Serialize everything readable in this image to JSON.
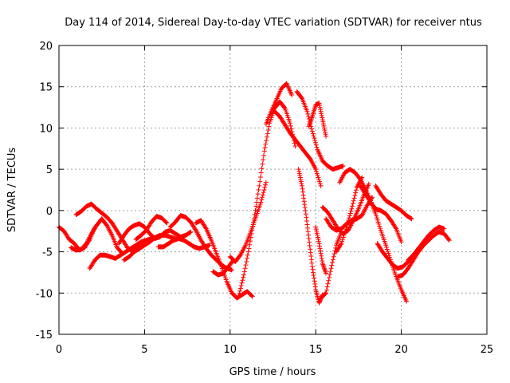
{
  "chart_data": {
    "type": "scatter",
    "title": "Day 114 of 2014, Sidereal Day-to-day VTEC variation (SDTVAR) for receiver ntus",
    "xlabel": "GPS time / hours",
    "ylabel": "SDTVAR / TECUs",
    "xlim": [
      0,
      25
    ],
    "ylim": [
      -15,
      20
    ],
    "xticks": [
      0,
      5,
      10,
      15,
      20,
      25
    ],
    "yticks": [
      -15,
      -10,
      -5,
      0,
      5,
      10,
      15,
      20
    ],
    "grid": true,
    "marker": "plus",
    "marker_color": "#ff0000",
    "series_traces": [
      {
        "name": "trace-1",
        "x": [
          0.0,
          0.3,
          0.6,
          0.9,
          1.2,
          1.5,
          1.8,
          2.1
        ],
        "y": [
          -2.0,
          -2.5,
          -3.5,
          -4.0,
          -4.8,
          -4.5,
          -3.5,
          -2.0
        ]
      },
      {
        "name": "trace-2",
        "x": [
          1.0,
          1.3,
          1.6,
          1.9,
          2.2,
          2.5,
          2.8,
          3.1,
          3.4,
          3.7,
          4.0,
          4.3,
          4.6,
          4.9
        ],
        "y": [
          -0.5,
          -0.1,
          0.5,
          0.8,
          0.2,
          -0.3,
          -0.8,
          -1.5,
          -2.5,
          -3.5,
          -4.5,
          -5.0,
          -4.5,
          -3.8
        ]
      },
      {
        "name": "trace-3",
        "x": [
          0.7,
          1.0,
          1.3,
          1.6,
          1.9,
          2.2,
          2.5,
          2.8,
          3.1,
          3.4,
          3.7
        ],
        "y": [
          -4.5,
          -4.8,
          -4.7,
          -4.0,
          -2.8,
          -1.8,
          -1.0,
          -1.8,
          -3.0,
          -4.5,
          -5.2
        ]
      },
      {
        "name": "trace-4",
        "x": [
          1.8,
          2.1,
          2.4,
          2.7,
          3.0,
          3.3,
          3.6,
          3.9,
          4.2,
          4.5,
          4.8,
          5.1,
          5.4,
          5.7,
          6.0
        ],
        "y": [
          -7.0,
          -6.0,
          -5.4,
          -5.4,
          -5.6,
          -5.8,
          -5.4,
          -5.0,
          -4.6,
          -4.2,
          -3.8,
          -3.6,
          -3.4,
          -3.2,
          -3.0
        ]
      },
      {
        "name": "trace-5",
        "x": [
          3.5,
          3.8,
          4.1,
          4.4,
          4.7,
          5.0,
          5.3,
          5.6,
          5.9,
          6.2,
          6.5,
          6.8,
          7.1,
          7.4,
          7.7
        ],
        "y": [
          -4.0,
          -3.0,
          -2.2,
          -1.8,
          -1.6,
          -2.0,
          -2.8,
          -3.4,
          -3.2,
          -2.6,
          -2.4,
          -2.8,
          -3.2,
          -3.0,
          -2.6
        ]
      },
      {
        "name": "trace-6",
        "x": [
          3.8,
          4.1,
          4.4,
          4.7,
          5.0,
          5.3,
          5.6,
          5.9,
          6.2,
          6.5,
          6.8
        ],
        "y": [
          -6.0,
          -5.6,
          -5.0,
          -4.6,
          -4.2,
          -3.8,
          -3.3,
          -3.0,
          -3.0,
          -3.2,
          -3.4
        ]
      },
      {
        "name": "trace-7",
        "x": [
          4.5,
          4.8,
          5.1,
          5.4,
          5.7,
          6.0,
          6.3
        ],
        "y": [
          -3.5,
          -3.0,
          -2.4,
          -1.4,
          -0.7,
          -0.9,
          -1.5
        ]
      },
      {
        "name": "trace-8",
        "x": [
          5.8,
          6.1,
          6.4,
          6.7,
          7.0,
          7.3,
          7.6,
          7.9,
          8.2,
          8.5,
          8.8
        ],
        "y": [
          -4.4,
          -4.4,
          -4.0,
          -3.6,
          -3.4,
          -3.6,
          -4.0,
          -4.4,
          -4.6,
          -4.4,
          -4.2
        ]
      },
      {
        "name": "trace-9",
        "x": [
          6.5,
          6.8,
          7.1,
          7.4,
          7.7,
          8.0,
          8.3,
          8.6,
          8.9,
          9.2,
          9.5,
          9.8,
          10.1
        ],
        "y": [
          -2.0,
          -1.4,
          -0.6,
          -0.8,
          -1.4,
          -2.4,
          -3.6,
          -4.6,
          -5.4,
          -6.0,
          -6.6,
          -7.0,
          -7.2
        ]
      },
      {
        "name": "trace-10",
        "x": [
          8.0,
          8.3,
          8.6,
          8.9,
          9.2,
          9.5,
          9.8,
          10.1,
          10.4,
          10.7,
          11.0,
          11.3
        ],
        "y": [
          -1.5,
          -1.2,
          -2.2,
          -3.6,
          -5.2,
          -6.8,
          -8.6,
          -10.0,
          -10.6,
          -10.2,
          -9.8,
          -10.4
        ]
      },
      {
        "name": "trace-11",
        "x": [
          9.0,
          9.3,
          9.6,
          9.9,
          10.2
        ],
        "y": [
          -7.4,
          -7.8,
          -7.6,
          -6.8,
          -6.0
        ]
      },
      {
        "name": "trace-12",
        "x": [
          10.5,
          10.8,
          11.1,
          11.4,
          11.7,
          12.0,
          12.3,
          12.6,
          12.9,
          13.2,
          13.5,
          13.8
        ],
        "y": [
          -10.4,
          -7.8,
          -4.6,
          -1.0,
          3.0,
          7.2,
          10.6,
          12.4,
          13.2,
          12.4,
          10.6,
          7.8
        ]
      },
      {
        "name": "trace-13",
        "x": [
          10.0,
          10.3,
          10.6,
          10.9,
          11.2,
          11.5,
          11.8,
          12.1
        ],
        "y": [
          -5.6,
          -6.2,
          -5.4,
          -4.2,
          -2.6,
          -0.8,
          1.0,
          3.4
        ]
      },
      {
        "name": "trace-14",
        "x": [
          12.1,
          12.4,
          12.7,
          13.0,
          13.3,
          13.6
        ],
        "y": [
          10.5,
          12.0,
          13.4,
          14.8,
          15.4,
          14.0
        ]
      },
      {
        "name": "trace-15",
        "x": [
          12.6,
          12.9,
          13.2,
          13.5,
          13.8,
          14.1,
          14.4,
          14.7,
          15.0,
          15.3
        ],
        "y": [
          12.0,
          11.4,
          10.4,
          9.4,
          8.6,
          7.8,
          7.0,
          6.2,
          5.0,
          3.0
        ]
      },
      {
        "name": "trace-16",
        "x": [
          13.9,
          14.2,
          14.5,
          14.8,
          15.1,
          15.4,
          15.7,
          16.0,
          16.3,
          16.6
        ],
        "y": [
          14.4,
          13.6,
          12.0,
          9.6,
          7.4,
          6.0,
          5.4,
          5.0,
          5.2,
          5.4
        ]
      },
      {
        "name": "trace-17",
        "x": [
          14.0,
          14.2,
          14.4,
          14.6,
          14.8,
          15.0,
          15.2,
          15.4
        ],
        "y": [
          5.0,
          3.0,
          0.0,
          -3.4,
          -6.8,
          -9.6,
          -11.2,
          -10.2
        ]
      },
      {
        "name": "trace-18",
        "x": [
          14.6,
          14.8,
          15.0,
          15.2,
          15.4,
          15.6
        ],
        "y": [
          10.2,
          11.4,
          12.8,
          13.0,
          11.0,
          9.0
        ]
      },
      {
        "name": "trace-19",
        "x": [
          15.0,
          15.2,
          15.4,
          15.6
        ],
        "y": [
          -2.0,
          -4.0,
          -6.4,
          -7.6
        ]
      },
      {
        "name": "trace-20",
        "x": [
          15.4,
          15.7,
          16.0,
          16.3,
          16.6,
          16.9,
          17.2,
          17.5,
          17.8,
          18.1
        ],
        "y": [
          0.4,
          -0.2,
          -1.2,
          -2.2,
          -2.8,
          -2.4,
          -1.2,
          0.2,
          1.8,
          3.2
        ]
      },
      {
        "name": "trace-21",
        "x": [
          15.6,
          15.9,
          16.2,
          16.5,
          16.8,
          17.1,
          17.4,
          17.7,
          18.0,
          18.3
        ],
        "y": [
          -1.0,
          -2.0,
          -2.4,
          -2.2,
          -1.6,
          -1.2,
          -1.0,
          -0.6,
          0.6,
          1.6
        ]
      },
      {
        "name": "trace-22",
        "x": [
          16.2,
          16.5,
          16.8,
          17.1,
          17.4,
          17.7
        ],
        "y": [
          -5.0,
          -4.0,
          -2.0,
          0.2,
          2.8,
          4.0
        ]
      },
      {
        "name": "trace-23",
        "x": [
          15.3,
          15.6,
          15.9,
          16.2,
          16.5
        ],
        "y": [
          -10.6,
          -10.0,
          -7.0,
          -4.2,
          -2.6
        ]
      },
      {
        "name": "trace-24",
        "x": [
          16.4,
          16.7,
          17.0,
          17.3,
          17.6,
          17.9,
          18.2,
          18.5,
          18.8,
          19.1,
          19.4,
          19.7,
          20.0,
          20.3
        ],
        "y": [
          3.4,
          4.6,
          5.0,
          4.6,
          3.8,
          2.6,
          1.2,
          -0.4,
          -2.4,
          -4.2,
          -6.2,
          -8.0,
          -9.6,
          -11.0
        ]
      },
      {
        "name": "trace-25",
        "x": [
          17.6,
          17.9,
          18.2,
          18.5,
          18.8,
          19.1,
          19.4,
          19.7,
          20.0
        ],
        "y": [
          3.0,
          2.0,
          1.0,
          0.2,
          0.0,
          -0.4,
          -1.2,
          -2.2,
          -3.8
        ]
      },
      {
        "name": "trace-26",
        "x": [
          18.5,
          18.8,
          19.1,
          19.4,
          19.7,
          20.0,
          20.3,
          20.6
        ],
        "y": [
          3.0,
          2.0,
          1.2,
          0.8,
          0.4,
          0.0,
          -0.6,
          -1.0
        ]
      },
      {
        "name": "trace-27",
        "x": [
          18.6,
          18.9,
          19.2,
          19.5,
          19.8,
          20.1,
          20.4,
          20.7,
          21.0,
          21.3
        ],
        "y": [
          -4.0,
          -5.0,
          -5.8,
          -6.6,
          -7.0,
          -6.8,
          -6.2,
          -5.4,
          -4.6,
          -4.0
        ]
      },
      {
        "name": "trace-28",
        "x": [
          19.8,
          20.1,
          20.4,
          20.7,
          21.0,
          21.3,
          21.6,
          21.9,
          22.2,
          22.5,
          22.8
        ],
        "y": [
          -8.0,
          -7.8,
          -7.0,
          -6.0,
          -5.0,
          -4.2,
          -3.6,
          -3.0,
          -2.6,
          -2.8,
          -3.6
        ]
      },
      {
        "name": "trace-29",
        "x": [
          20.4,
          20.7,
          21.0,
          21.3,
          21.6,
          21.9,
          22.2,
          22.5
        ],
        "y": [
          -6.0,
          -5.4,
          -4.6,
          -3.8,
          -3.0,
          -2.4,
          -2.0,
          -2.2
        ]
      }
    ]
  }
}
